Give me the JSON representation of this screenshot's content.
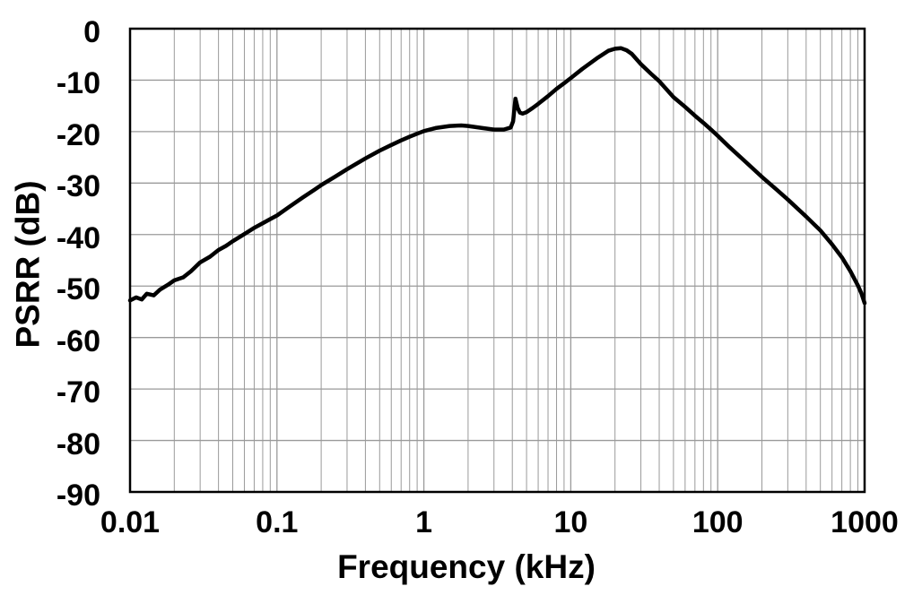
{
  "chart_data": {
    "type": "line",
    "title": "",
    "xlabel": "Frequency (kHz)",
    "ylabel": "PSRR (dB)",
    "x_scale": "log",
    "xlim": [
      0.01,
      1000
    ],
    "ylim": [
      -90,
      0
    ],
    "grid": "on",
    "legend": "none",
    "x_ticks": [
      {
        "value": 0.01,
        "label": "0.01"
      },
      {
        "value": 0.1,
        "label": "0.1"
      },
      {
        "value": 1,
        "label": "1"
      },
      {
        "value": 10,
        "label": "10"
      },
      {
        "value": 100,
        "label": "100"
      },
      {
        "value": 1000,
        "label": "1000"
      }
    ],
    "x_minor_per_decade": [
      2,
      3,
      4,
      5,
      6,
      7,
      8,
      9
    ],
    "y_ticks": [
      {
        "value": 0,
        "label": "0"
      },
      {
        "value": -10,
        "label": "-10"
      },
      {
        "value": -20,
        "label": "-20"
      },
      {
        "value": -30,
        "label": "-30"
      },
      {
        "value": -40,
        "label": "-40"
      },
      {
        "value": -50,
        "label": "-50"
      },
      {
        "value": -60,
        "label": "-60"
      },
      {
        "value": -70,
        "label": "-70"
      },
      {
        "value": -80,
        "label": "-80"
      },
      {
        "value": -90,
        "label": "-90"
      }
    ],
    "series": [
      {
        "name": "PSRR",
        "points": [
          [
            0.01,
            -52.8
          ],
          [
            0.011,
            -52.2
          ],
          [
            0.012,
            -52.6
          ],
          [
            0.013,
            -51.5
          ],
          [
            0.0145,
            -51.8
          ],
          [
            0.016,
            -50.7
          ],
          [
            0.018,
            -49.8
          ],
          [
            0.02,
            -48.9
          ],
          [
            0.023,
            -48.3
          ],
          [
            0.026,
            -47.1
          ],
          [
            0.03,
            -45.4
          ],
          [
            0.035,
            -44.3
          ],
          [
            0.04,
            -43.0
          ],
          [
            0.045,
            -42.2
          ],
          [
            0.05,
            -41.3
          ],
          [
            0.06,
            -39.9
          ],
          [
            0.07,
            -38.7
          ],
          [
            0.08,
            -37.8
          ],
          [
            0.09,
            -37.0
          ],
          [
            0.1,
            -36.3
          ],
          [
            0.12,
            -34.7
          ],
          [
            0.15,
            -32.8
          ],
          [
            0.18,
            -31.3
          ],
          [
            0.2,
            -30.4
          ],
          [
            0.25,
            -28.7
          ],
          [
            0.3,
            -27.3
          ],
          [
            0.4,
            -25.2
          ],
          [
            0.5,
            -23.7
          ],
          [
            0.6,
            -22.6
          ],
          [
            0.7,
            -21.7
          ],
          [
            0.8,
            -21.0
          ],
          [
            0.9,
            -20.4
          ],
          [
            1,
            -19.9
          ],
          [
            1.2,
            -19.3
          ],
          [
            1.5,
            -18.9
          ],
          [
            1.8,
            -18.8
          ],
          [
            2,
            -18.9
          ],
          [
            2.5,
            -19.3
          ],
          [
            3,
            -19.6
          ],
          [
            3.5,
            -19.6
          ],
          [
            3.9,
            -19.2
          ],
          [
            4.05,
            -18.0
          ],
          [
            4.2,
            -13.6
          ],
          [
            4.35,
            -15.4
          ],
          [
            4.5,
            -16.3
          ],
          [
            4.7,
            -16.5
          ],
          [
            5,
            -16.2
          ],
          [
            5.5,
            -15.4
          ],
          [
            6,
            -14.6
          ],
          [
            7,
            -13.1
          ],
          [
            8,
            -11.7
          ],
          [
            9,
            -10.6
          ],
          [
            10,
            -9.6
          ],
          [
            12,
            -7.8
          ],
          [
            15,
            -5.8
          ],
          [
            18,
            -4.3
          ],
          [
            20,
            -3.9
          ],
          [
            22,
            -3.8
          ],
          [
            24,
            -4.2
          ],
          [
            26,
            -4.9
          ],
          [
            30,
            -6.9
          ],
          [
            35,
            -8.7
          ],
          [
            40,
            -10.2
          ],
          [
            50,
            -13.3
          ],
          [
            60,
            -15.2
          ],
          [
            70,
            -16.9
          ],
          [
            80,
            -18.3
          ],
          [
            90,
            -19.6
          ],
          [
            100,
            -20.8
          ],
          [
            120,
            -23.0
          ],
          [
            150,
            -25.5
          ],
          [
            200,
            -28.8
          ],
          [
            250,
            -31.2
          ],
          [
            300,
            -33.2
          ],
          [
            400,
            -36.5
          ],
          [
            500,
            -39.2
          ],
          [
            600,
            -41.9
          ],
          [
            700,
            -44.4
          ],
          [
            800,
            -47.1
          ],
          [
            900,
            -49.9
          ],
          [
            950,
            -51.4
          ],
          [
            1000,
            -53.3
          ]
        ]
      }
    ],
    "annotations": {
      "curve_start": "-52.8 dB at 0.01 kHz (slight measurement noise at low frequency)",
      "resonance_spike": "-13.6 dB narrow spike near 4.2 kHz",
      "peak": "-3.8 dB broad peak near 20 kHz",
      "curve_end": "-53.3 dB at 1000 kHz"
    },
    "colors": {
      "curve": "#000000",
      "grid": "#9a9a9a",
      "axis": "#000000",
      "background": "#ffffff",
      "text": "#000000"
    }
  }
}
